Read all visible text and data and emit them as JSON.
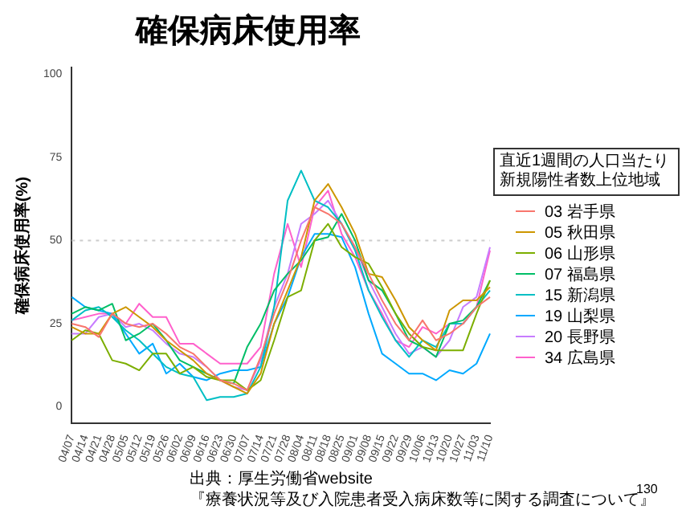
{
  "chart_data": {
    "type": "line",
    "title": "確保病床使用率",
    "ylabel": "確保病床使用率(%)",
    "legend_title": "直近1週間の人口当たり新規陽性者数上位地域",
    "categories": [
      "04/07",
      "04/14",
      "04/21",
      "04/28",
      "05/05",
      "05/12",
      "05/19",
      "05/26",
      "06/02",
      "06/09",
      "06/16",
      "06/23",
      "06/30",
      "07/07",
      "07/14",
      "07/21",
      "07/28",
      "08/04",
      "08/11",
      "08/18",
      "08/25",
      "09/01",
      "09/08",
      "09/15",
      "09/22",
      "09/29",
      "10/06",
      "10/13",
      "10/20",
      "10/27",
      "11/03",
      "11/10"
    ],
    "series": [
      {
        "name": "03 岩手県",
        "color": "#f8766d",
        "values": [
          25,
          24,
          21,
          28,
          25,
          24,
          25,
          22,
          18,
          16,
          12,
          8,
          7,
          5,
          15,
          28,
          38,
          50,
          60,
          58,
          55,
          48,
          40,
          32,
          25,
          20,
          26,
          20,
          22,
          25,
          30,
          33
        ]
      },
      {
        "name": "05 秋田県",
        "color": "#cd9600",
        "values": [
          24,
          22,
          22,
          28,
          30,
          27,
          24,
          20,
          17,
          14,
          10,
          8,
          6,
          4,
          10,
          25,
          35,
          45,
          62,
          67,
          60,
          52,
          40,
          39,
          32,
          24,
          20,
          17,
          29,
          32,
          32,
          36
        ]
      },
      {
        "name": "06 山形県",
        "color": "#7cae00",
        "values": [
          20,
          23,
          22,
          14,
          13,
          11,
          16,
          16,
          10,
          12,
          9,
          8,
          8,
          5,
          8,
          20,
          33,
          35,
          50,
          55,
          48,
          45,
          43,
          36,
          28,
          22,
          18,
          17,
          17,
          17,
          28,
          38
        ]
      },
      {
        "name": "07 福島県",
        "color": "#00be67",
        "values": [
          28,
          30,
          29,
          31,
          20,
          22,
          25,
          20,
          14,
          12,
          10,
          8,
          7,
          18,
          25,
          35,
          40,
          44,
          50,
          51,
          58,
          50,
          38,
          35,
          28,
          20,
          18,
          15,
          25,
          26,
          30,
          38
        ]
      },
      {
        "name": "15 新潟県",
        "color": "#00bfc4",
        "values": [
          26,
          29,
          30,
          27,
          23,
          20,
          16,
          12,
          10,
          9,
          2,
          3,
          3,
          4,
          12,
          30,
          62,
          71,
          62,
          60,
          55,
          47,
          35,
          27,
          20,
          15,
          20,
          18,
          25,
          25,
          30,
          35
        ]
      },
      {
        "name": "19 山梨県",
        "color": "#00a9ff",
        "values": [
          33,
          30,
          29,
          28,
          22,
          16,
          19,
          10,
          13,
          9,
          8,
          10,
          11,
          11,
          12,
          25,
          33,
          45,
          52,
          52,
          51,
          42,
          28,
          16,
          13,
          10,
          10,
          8,
          11,
          10,
          13,
          22
        ]
      },
      {
        "name": "20 長野県",
        "color": "#c77cff",
        "values": [
          22,
          22,
          27,
          28,
          24,
          25,
          23,
          19,
          16,
          15,
          12,
          8,
          6,
          5,
          14,
          30,
          40,
          55,
          58,
          62,
          55,
          48,
          38,
          30,
          22,
          16,
          18,
          15,
          20,
          30,
          33,
          48
        ]
      },
      {
        "name": "34 広島県",
        "color": "#ff61cc",
        "values": [
          26,
          27,
          28,
          28,
          25,
          31,
          27,
          27,
          19,
          19,
          16,
          13,
          13,
          13,
          18,
          40,
          55,
          42,
          60,
          65,
          52,
          45,
          35,
          28,
          20,
          18,
          24,
          22,
          25,
          25,
          30,
          47
        ]
      }
    ],
    "ylim": [
      -5,
      102
    ],
    "yticks": [
      0,
      25,
      50,
      75,
      100
    ],
    "grid": false,
    "legend": "right",
    "marker": "none",
    "line_style": "solid",
    "ref_lines": [
      {
        "axis": "y",
        "value": 50,
        "color": "#cccccc",
        "line_style": "dotted"
      }
    ],
    "annotations": [
      "出典：厚生労働省website",
      "『療養状況等及び入院患者受入病床数等に関する調査について』",
      "130"
    ]
  }
}
